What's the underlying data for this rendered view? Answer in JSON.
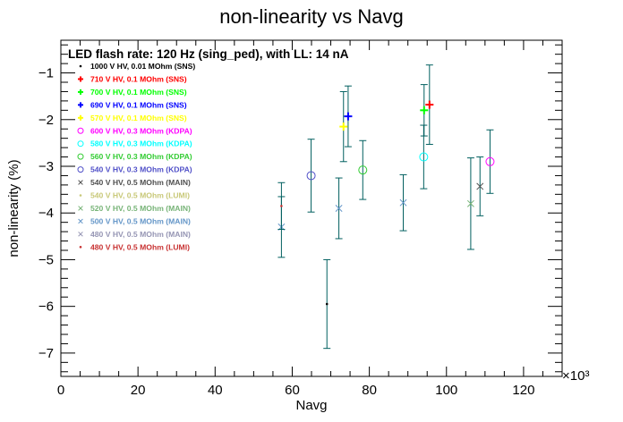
{
  "chart_data": {
    "type": "scatter",
    "title": "non-linearity vs Navg",
    "xlabel": "Navg",
    "ylabel": "non-linearity (%)",
    "x_multiplier_label": "×10³",
    "xlim": [
      0,
      130
    ],
    "ylim": [
      -7.5,
      -0.3
    ],
    "x_ticks": [
      0,
      20,
      40,
      60,
      80,
      100,
      120
    ],
    "y_ticks": [
      -1,
      -2,
      -3,
      -4,
      -5,
      -6,
      -7
    ],
    "grid": false,
    "legend_position": "top-left",
    "legend_header": "LED flash rate: 120 Hz  (sing_ped), with LL: 14 nA",
    "error_bar_color": "#005f5f",
    "series": [
      {
        "name": "1000 V HV, 0.01 MOhm (SNS)",
        "color": "#000000",
        "marker": "dot",
        "x": [
          69
        ],
        "y": [
          -5.95
        ],
        "yerr": [
          0.95
        ]
      },
      {
        "name": "710 V HV, 0.1 MOhm (SNS)",
        "color": "#ff0000",
        "marker": "plus",
        "x": [
          95.6
        ],
        "y": [
          -1.68
        ],
        "yerr": [
          0.85
        ]
      },
      {
        "name": "700 V HV, 0.1 MOhm (SNS)",
        "color": "#00ff00",
        "marker": "plus",
        "x": [
          94.2
        ],
        "y": [
          -1.8
        ],
        "yerr": [
          0.55
        ]
      },
      {
        "name": "690 V HV, 0.1 MOhm (SNS)",
        "color": "#0000ff",
        "marker": "plus",
        "x": [
          74.5
        ],
        "y": [
          -1.93
        ],
        "yerr": [
          0.65
        ]
      },
      {
        "name": "570 V HV, 0.1 MOhm (SNS)",
        "color": "#ffff00",
        "marker": "plus",
        "x": [
          73.3
        ],
        "y": [
          -2.15
        ],
        "yerr": [
          0.75
        ]
      },
      {
        "name": "600 V HV, 0.3 MOhm (KDPA)",
        "color": "#ff00ff",
        "marker": "circle",
        "x": [
          111.3
        ],
        "y": [
          -2.9
        ],
        "yerr": [
          0.68
        ]
      },
      {
        "name": "580 V HV, 0.3 MOhm (KDPA)",
        "color": "#00ffff",
        "marker": "circle",
        "x": [
          94.1
        ],
        "y": [
          -2.8
        ],
        "yerr": [
          0.68
        ]
      },
      {
        "name": "560 V HV, 0.3 MOhm (KDPA)",
        "color": "#33cc33",
        "marker": "circle",
        "x": [
          78.3
        ],
        "y": [
          -3.08
        ],
        "yerr": [
          0.63
        ]
      },
      {
        "name": "540 V HV, 0.3 MOhm (KDPA)",
        "color": "#5050c8",
        "marker": "circle",
        "x": [
          64.9
        ],
        "y": [
          -3.2
        ],
        "yerr": [
          0.78
        ]
      },
      {
        "name": "540 V HV, 0.5 MOhm (MAIN)",
        "color": "#505050",
        "marker": "cross",
        "x": [
          108.7
        ],
        "y": [
          -3.43
        ],
        "yerr": [
          0.63
        ]
      },
      {
        "name": "540 V HV, 0.5 MOhm (LUMI)",
        "color": "#c8c878",
        "marker": "dot",
        "x": [
          null
        ],
        "y": [
          null
        ],
        "yerr": [
          null
        ]
      },
      {
        "name": "520 V HV, 0.5 MOhm (MAIN)",
        "color": "#78b478",
        "marker": "cross",
        "x": [
          106.3
        ],
        "y": [
          -3.8
        ],
        "yerr": [
          0.98
        ]
      },
      {
        "name": "500 V HV, 0.5 MOhm (MAIN)",
        "color": "#6496c8",
        "marker": "cross",
        "x": [
          88.8,
          72.1,
          57.2
        ],
        "y": [
          -3.78,
          -3.9,
          -4.3
        ],
        "yerr": [
          0.6,
          0.65,
          0.65
        ]
      },
      {
        "name": "480 V HV, 0.5 MOhm (MAIN)",
        "color": "#9696b4",
        "marker": "cross",
        "x": [
          null
        ],
        "y": [
          null
        ],
        "yerr": [
          null
        ]
      },
      {
        "name": "480 V HV, 0.5 MOhm (LUMI)",
        "color": "#c83232",
        "marker": "dot",
        "x": [
          57.2
        ],
        "y": [
          -3.85
        ],
        "yerr": [
          0.5
        ]
      }
    ]
  }
}
